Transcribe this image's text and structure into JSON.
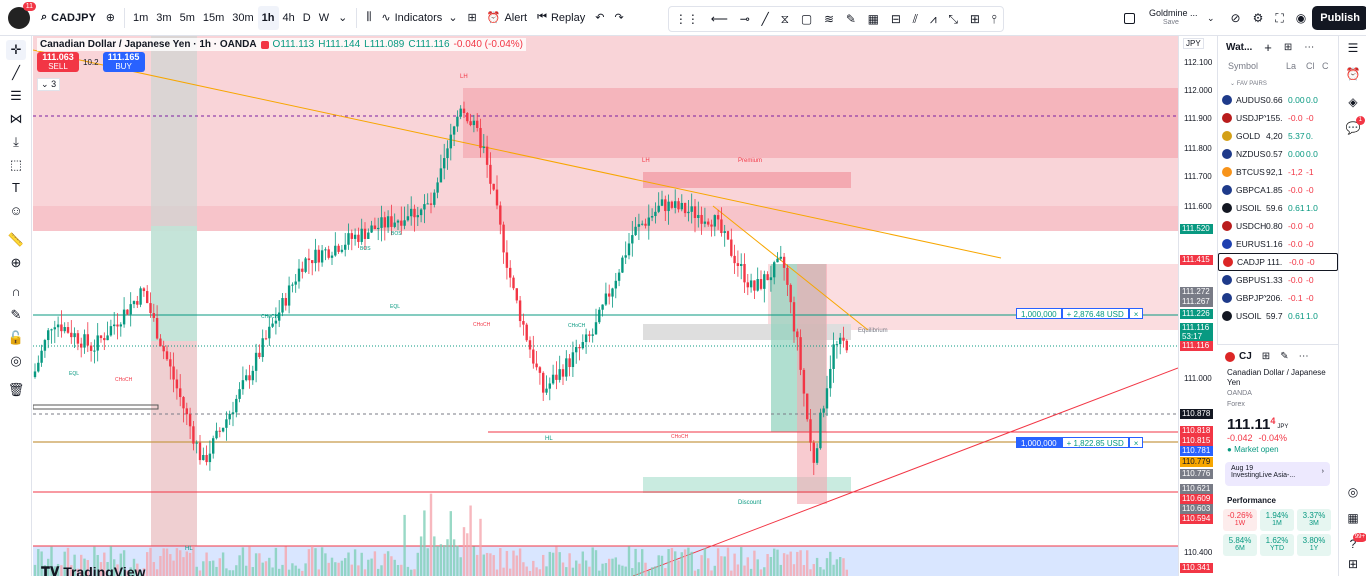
{
  "topbar": {
    "avatar_badge": "11",
    "symbol": "CADJPY",
    "intervals": [
      "1m",
      "3m",
      "5m",
      "15m",
      "30m",
      "1h",
      "4h",
      "D",
      "W"
    ],
    "active_interval": "1h",
    "indicators_label": "Indicators",
    "alert_label": "Alert",
    "replay_label": "Replay",
    "account_name": "Goldmine ...",
    "account_status": "Save",
    "publish_label": "Publish"
  },
  "legend": {
    "title": "Canadian Dollar / Japanese Yen · 1h · OANDA",
    "o": "O111.113",
    "h": "H111.144",
    "l": "L111.089",
    "c": "C111.116",
    "change": "-0.040 (-0.04%)",
    "sell_price": "111.063",
    "sell_label": "SELL",
    "spread": "10.2",
    "buy_price": "111.165",
    "buy_label": "BUY",
    "indicator_count": "3"
  },
  "chart_labels": {
    "lh": "LH",
    "premium": "Premium",
    "equilibrium": "Equilibrium",
    "discount": "Discount",
    "hl": "HL",
    "eql": "EQL",
    "choch": "CHoCH",
    "bos": "BOS",
    "watermark": "TradingView"
  },
  "positions": [
    {
      "qty": "1,000,000",
      "pnl": "+ 2,876.48 USD"
    },
    {
      "qty": "1,000,000",
      "pnl": "+ 1,822.85 USD"
    }
  ],
  "price_axis": {
    "currency": "JPY",
    "ticks": [
      "112.100",
      "112.000",
      "111.900",
      "111.800",
      "111.700",
      "111.600",
      "111.000",
      "110.400"
    ],
    "badges": [
      {
        "label": "111.520",
        "color": "#089981"
      },
      {
        "label": "111.415",
        "color": "#f23645"
      },
      {
        "label": "111.272",
        "color": "#787b86"
      },
      {
        "label": "111.267",
        "color": "#787b86"
      },
      {
        "label": "111.226",
        "color": "#089981"
      },
      {
        "label": "111.116",
        "color": "#089981"
      },
      {
        "label": "53:17",
        "color": "#089981"
      },
      {
        "label": "111.116",
        "color": "#f23645"
      },
      {
        "label": "110.878",
        "color": "#131722"
      },
      {
        "label": "110.818",
        "color": "#f23645"
      },
      {
        "label": "110.815",
        "color": "#f23645"
      },
      {
        "label": "110.781",
        "color": "#2962ff"
      },
      {
        "label": "110.779",
        "color": "#f7a600"
      },
      {
        "label": "110.776",
        "color": "#787b86"
      },
      {
        "label": "110.621",
        "color": "#787b86"
      },
      {
        "label": "110.609",
        "color": "#f23645"
      },
      {
        "label": "110.603",
        "color": "#787b86"
      },
      {
        "label": "110.594",
        "color": "#f23645"
      },
      {
        "label": "110.341",
        "color": "#f23645"
      }
    ]
  },
  "watchlist": {
    "title": "Wat...",
    "col_symbol": "Symbol",
    "col_last": "La",
    "col_chg": "Cl",
    "col_pct": "C",
    "section": "FAV PAIRS",
    "items": [
      {
        "sym": "AUDUSD",
        "last": "0.66",
        "chg": "0.00",
        "pct": "0.0",
        "pos": true,
        "color": "#1e3a8a"
      },
      {
        "sym": "USDJPY",
        "last": "155.",
        "chg": "-0.0",
        "pct": "-0",
        "pos": false,
        "color": "#b91c1c"
      },
      {
        "sym": "GOLD",
        "last": "4,20",
        "chg": "5.37",
        "pct": "0.",
        "pos": true,
        "color": "#d4a017"
      },
      {
        "sym": "NZDUSD",
        "last": "0.57",
        "chg": "0.00",
        "pct": "0.0",
        "pos": true,
        "color": "#1e3a8a"
      },
      {
        "sym": "BTCUS",
        "last": "92,1",
        "chg": "-1,2",
        "pct": "-1",
        "pos": false,
        "color": "#f7931a"
      },
      {
        "sym": "GBPCAD",
        "last": "1.85",
        "chg": "-0.0",
        "pct": "-0",
        "pos": false,
        "color": "#1e3a8a"
      },
      {
        "sym": "USOIL",
        "last": "59.6",
        "chg": "0.61",
        "pct": "1.0",
        "pos": true,
        "color": "#131722"
      },
      {
        "sym": "USDCH",
        "last": "0.80",
        "chg": "-0.0",
        "pct": "-0",
        "pos": false,
        "color": "#b91c1c"
      },
      {
        "sym": "EURUSD",
        "last": "1.16",
        "chg": "-0.0",
        "pct": "-0",
        "pos": false,
        "color": "#1e40af"
      },
      {
        "sym": "CADJP",
        "last": "111.",
        "chg": "-0.0",
        "pct": "-0",
        "pos": false,
        "color": "#dc2626"
      },
      {
        "sym": "GBPUSD",
        "last": "1.33",
        "chg": "-0.0",
        "pct": "-0",
        "pos": false,
        "color": "#1e3a8a"
      },
      {
        "sym": "GBPJPY",
        "last": "206.",
        "chg": "-0.1",
        "pct": "-0",
        "pos": false,
        "color": "#1e3a8a"
      },
      {
        "sym": "USOIL",
        "last": "59.7",
        "chg": "0.61",
        "pct": "1.0",
        "pos": true,
        "color": "#131722"
      }
    ]
  },
  "details": {
    "symbol": "CJ",
    "name": "Canadian Dollar / Japanese Yen",
    "exchange": "OANDA",
    "type": "Forex",
    "price": "111.11",
    "price_sup": "4",
    "currency": "JPY",
    "change": "-0.042",
    "change_pct": "-0.04%",
    "market_status": "Market open",
    "news_date": "Aug 19",
    "news_title": "InvestingLive Asia-...",
    "performance_title": "Performance",
    "perf": [
      {
        "v": "-0.26%",
        "p": "1W",
        "pos": false
      },
      {
        "v": "1.94%",
        "p": "1M",
        "pos": true
      },
      {
        "v": "3.37%",
        "p": "3M",
        "pos": true
      },
      {
        "v": "5.84%",
        "p": "6M",
        "pos": true
      },
      {
        "v": "1.62%",
        "p": "YTD",
        "pos": true
      },
      {
        "v": "3.80%",
        "p": "1Y",
        "pos": true
      }
    ]
  },
  "rightbar": {
    "alerts_badge": "1",
    "notif_badge": "99+"
  },
  "colors": {
    "up": "#089981",
    "down": "#f23645",
    "accent": "#2962ff"
  }
}
